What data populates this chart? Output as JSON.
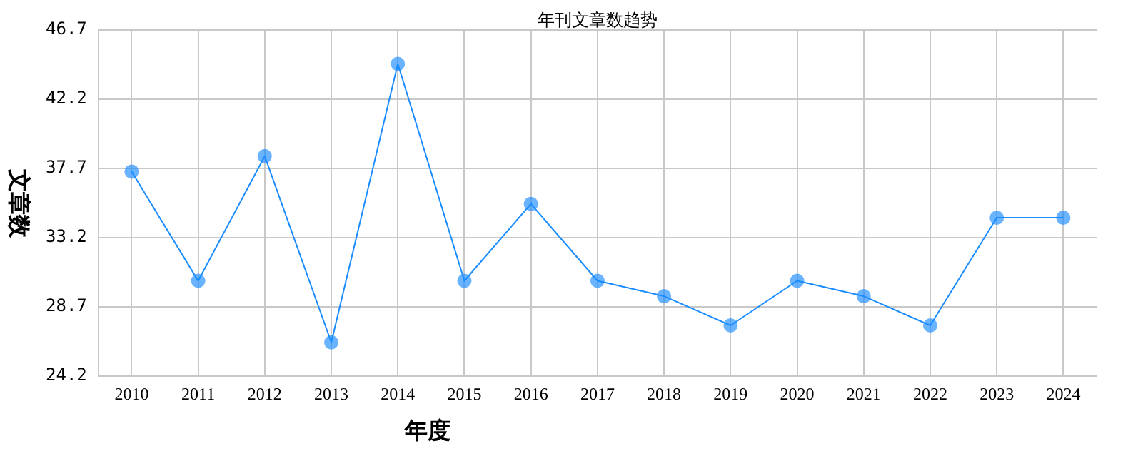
{
  "chart_data": {
    "type": "line",
    "title": "年刊文章数趋势",
    "xlabel": "年度",
    "ylabel": "文章数",
    "categories": [
      "2010",
      "2011",
      "2012",
      "2013",
      "2014",
      "2015",
      "2016",
      "2017",
      "2018",
      "2019",
      "2020",
      "2021",
      "2022",
      "2023",
      "2024"
    ],
    "series": [
      {
        "color": "#1a8cff",
        "values": [
          37.5,
          30.4,
          38.5,
          26.4,
          44.5,
          30.4,
          35.4,
          30.4,
          29.4,
          27.5,
          30.4,
          29.4,
          27.5,
          34.5,
          34.5
        ]
      }
    ],
    "ylim": [
      24.2,
      46.7
    ],
    "yticks": [
      24.2,
      28.7,
      33.2,
      37.7,
      42.2,
      46.7
    ],
    "grid": true,
    "legend": false,
    "marker": "circle",
    "line_style": "solid"
  }
}
